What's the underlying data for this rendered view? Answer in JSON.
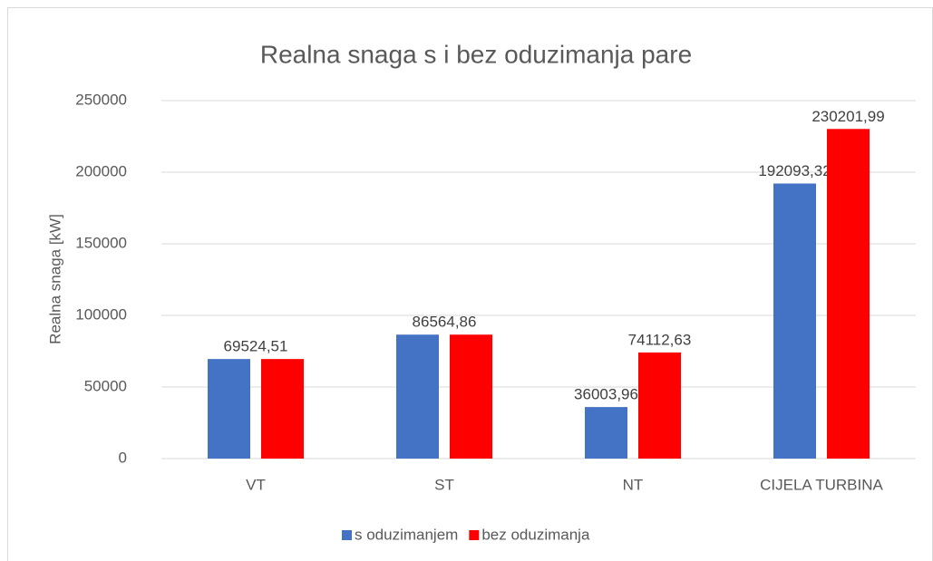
{
  "chart_data": {
    "type": "bar",
    "title": "Realna snaga s i bez oduzimanja pare",
    "y_label": "Realna snaga [kW]",
    "categories": [
      "VT",
      "ST",
      "NT",
      "CIJELA TURBINA"
    ],
    "series": [
      {
        "name": "s oduzimanjem",
        "color": "#4472c4",
        "values": [
          69524.51,
          86564.86,
          36003.96,
          192093.32
        ],
        "value_labels": [
          null,
          null,
          "36003,96",
          "192093,32"
        ]
      },
      {
        "name": "bez oduzimanja",
        "color": "#ff0000",
        "values": [
          69524.51,
          86564.86,
          74112.63,
          230201.99
        ],
        "value_labels": [
          "69524,51",
          "86564,86",
          "74112,63",
          "230201,99"
        ]
      }
    ],
    "ylim": [
      0,
      250000
    ],
    "yticks": [
      0,
      50000,
      100000,
      150000,
      200000,
      250000
    ],
    "grid": true,
    "legend": "bottom"
  }
}
